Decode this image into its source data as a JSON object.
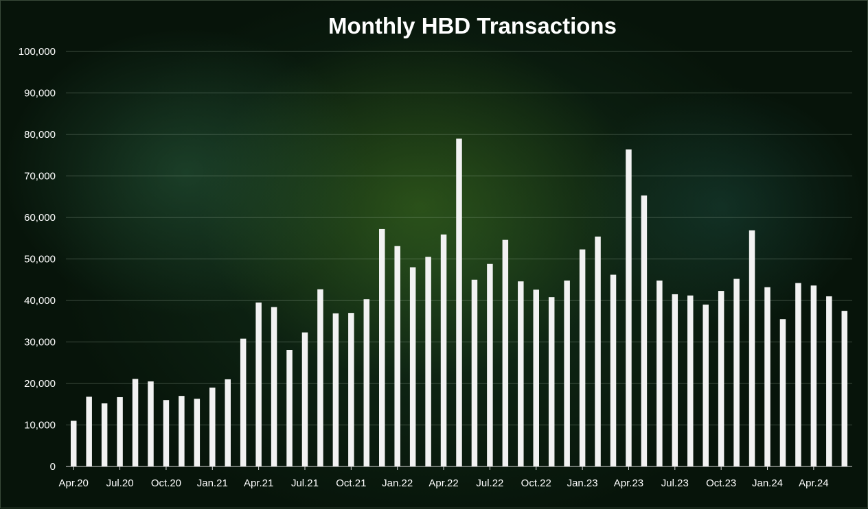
{
  "chart_data": {
    "type": "bar",
    "title": "Monthly HBD Transactions",
    "xlabel": "",
    "ylabel": "",
    "ylim": [
      0,
      100000
    ],
    "y_ticks": [
      "0",
      "10,000",
      "20,000",
      "30,000",
      "40,000",
      "50,000",
      "60,000",
      "70,000",
      "80,000",
      "90,000",
      "100,000"
    ],
    "y_tick_values": [
      0,
      10000,
      20000,
      30000,
      40000,
      50000,
      60000,
      70000,
      80000,
      90000,
      100000
    ],
    "grid": true,
    "legend": "none",
    "bar_color": "#f2f2f2",
    "categories": [
      "Apr.20",
      "May.20",
      "Jun.20",
      "Jul.20",
      "Aug.20",
      "Sep.20",
      "Oct.20",
      "Nov.20",
      "Dec.20",
      "Jan.21",
      "Feb.21",
      "Mar.21",
      "Apr.21",
      "May.21",
      "Jun.21",
      "Jul.21",
      "Aug.21",
      "Sep.21",
      "Oct.21",
      "Nov.21",
      "Dec.21",
      "Jan.22",
      "Feb.22",
      "Mar.22",
      "Apr.22",
      "May.22",
      "Jun.22",
      "Jul.22",
      "Aug.22",
      "Sep.22",
      "Oct.22",
      "Nov.22",
      "Dec.22",
      "Jan.23",
      "Feb.23",
      "Mar.23",
      "Apr.23",
      "May.23",
      "Jun.23",
      "Jul.23",
      "Aug.23",
      "Sep.23",
      "Oct.23",
      "Nov.23",
      "Dec.23",
      "Jan.24",
      "Feb.24",
      "Mar.24",
      "Apr.24",
      "May.24",
      "Jun.24"
    ],
    "x_tick_labels": [
      "Apr.20",
      "Jul.20",
      "Oct.20",
      "Jan.21",
      "Apr.21",
      "Jul.21",
      "Oct.21",
      "Jan.22",
      "Apr.22",
      "Jul.22",
      "Oct.22",
      "Jan.23",
      "Apr.23",
      "Jul.23",
      "Oct.23",
      "Jan.24",
      "Apr.24"
    ],
    "values": [
      11000,
      16800,
      15200,
      16700,
      21100,
      20500,
      16000,
      17000,
      16300,
      19000,
      21000,
      30800,
      39500,
      38400,
      28100,
      32300,
      42700,
      36900,
      37000,
      40300,
      57200,
      53100,
      48000,
      50500,
      55900,
      79000,
      45000,
      48800,
      54600,
      44600,
      42600,
      40800,
      44800,
      52300,
      55400,
      46200,
      76400,
      65300,
      44800,
      41500,
      41200,
      39000,
      42300,
      45200,
      56900,
      43200,
      35500,
      44200,
      43600,
      41000,
      37500
    ]
  }
}
